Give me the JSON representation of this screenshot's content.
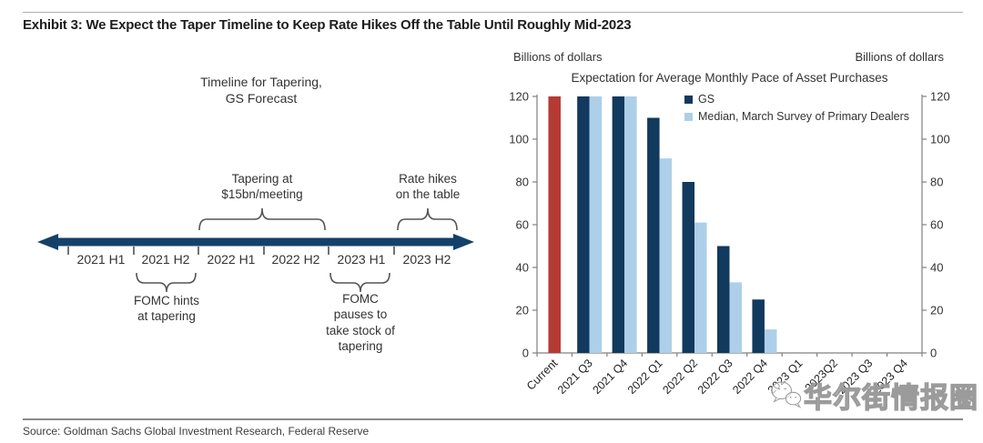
{
  "header": {
    "title": "Exhibit 3: We Expect the Taper Timeline to Keep Rate Hikes Off the Table Until Roughly Mid-2023"
  },
  "timeline": {
    "heading": "Timeline for Tapering,\nGS Forecast",
    "segments": [
      "2021 H1",
      "2021 H2",
      "2022 H1",
      "2022 H2",
      "2023 H1",
      "2023 H2"
    ],
    "annotations": {
      "tapering": "Tapering at\n$15bn/meeting",
      "rate_hikes": "Rate hikes\non the table",
      "fomc_hints": "FOMC hints\nat tapering",
      "fomc_pauses": "FOMC\npauses to\ntake stock of\ntapering"
    },
    "arrow_color": "#14416b"
  },
  "chart_data": {
    "type": "bar",
    "title": "Expectation for Average Monthly Pace of Asset Purchases",
    "ylabel_left": "Billions of dollars",
    "ylabel_right": "Billions of dollars",
    "ylim": [
      0,
      120
    ],
    "yticks": [
      0,
      20,
      40,
      60,
      80,
      100,
      120
    ],
    "grid": false,
    "legend_position": "inside-top-right",
    "categories": [
      "Current",
      "2021 Q3",
      "2021 Q4",
      "2022 Q1",
      "2022 Q2",
      "2022 Q3",
      "2022 Q4",
      "2023 Q1",
      "2023Q2",
      "2023 Q3",
      "2023 Q4"
    ],
    "series": [
      {
        "name": "Current",
        "color": "#b53a35",
        "in_legend": false,
        "values": [
          120,
          null,
          null,
          null,
          null,
          null,
          null,
          null,
          null,
          null,
          null
        ]
      },
      {
        "name": "GS",
        "color": "#12395e",
        "in_legend": true,
        "values": [
          null,
          120,
          120,
          110,
          80,
          50,
          25,
          0,
          0,
          0,
          0
        ]
      },
      {
        "name": "Median, March Survey of Primary Dealers",
        "color": "#aecfe9",
        "in_legend": true,
        "values": [
          null,
          120,
          120,
          91,
          61,
          33,
          11,
          0,
          0,
          0,
          0
        ]
      }
    ],
    "axis_color": "#808080",
    "tick_label_color": "#333333"
  },
  "watermark": {
    "text": "华尔街情报圈"
  },
  "footer": {
    "source": "Source: Goldman Sachs Global Investment Research, Federal Reserve"
  }
}
